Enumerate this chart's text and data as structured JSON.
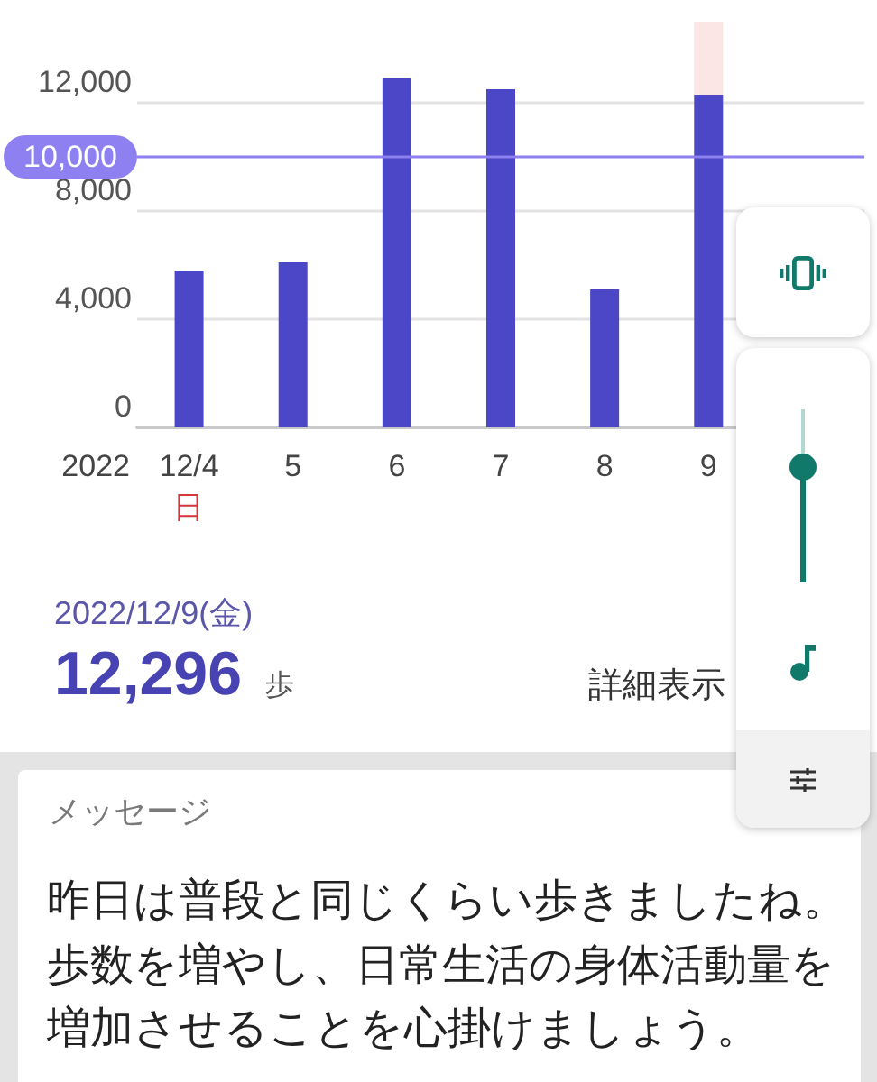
{
  "chart_data": {
    "type": "bar",
    "xlabel": "2022",
    "categories": [
      "12/4",
      "5",
      "6",
      "7",
      "8",
      "9",
      null
    ],
    "series": [
      {
        "color": "#4b47c6",
        "values": [
          5800,
          6100,
          12900,
          12500,
          5100,
          12296,
          null
        ]
      }
    ],
    "ylim": [
      0,
      15000
    ],
    "yticks": [
      0,
      {
        "value": 4000,
        "label": "4,000"
      },
      {
        "value": 8000,
        "label": "8,000"
      },
      {
        "value": 12000,
        "label": "12,000"
      }
    ],
    "grid": "y",
    "ref_lines": [
      {
        "axis": "y",
        "value": 10000,
        "label": "10,000",
        "color": "#8e80f0"
      }
    ],
    "bands": [
      {
        "axis": "x",
        "from": "9",
        "to": "9",
        "color": "#fce5e5"
      }
    ],
    "annotations": [
      "日",
      "2022/12/9(金)",
      "12,296",
      "歩",
      "詳細表示",
      "メッセージ",
      "昨日は普段と同じくらい歩きましたね。",
      "歩数を増やし、日常生活の身体活動量を",
      "増加させることを心掛けましょう。"
    ]
  }
}
